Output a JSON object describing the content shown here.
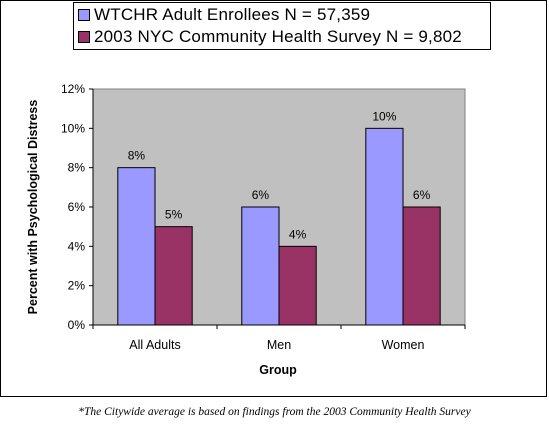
{
  "chart_data": {
    "type": "bar",
    "title": "",
    "xlabel": "Group",
    "ylabel": "Percent with Psychological Distress",
    "categories": [
      "All Adults",
      "Men",
      "Women"
    ],
    "series": [
      {
        "name": "WTCHR Adult Enrollees N = 57,359",
        "color": "#9999ff",
        "values": [
          8,
          6,
          10
        ],
        "labels": [
          "8%",
          "6%",
          "10%"
        ]
      },
      {
        "name": "2003 NYC Community Health Survey N = 9,802",
        "color": "#993366",
        "values": [
          5,
          4,
          6
        ],
        "labels": [
          "5%",
          "4%",
          "6%"
        ]
      }
    ],
    "ylim": [
      0,
      12
    ],
    "yticks": [
      0,
      2,
      4,
      6,
      8,
      10,
      12
    ],
    "ytick_labels": [
      "0%",
      "2%",
      "4%",
      "6%",
      "8%",
      "10%",
      "12%"
    ],
    "grid": false,
    "plot_background": "#c0c0c0",
    "legend_position": "top"
  },
  "footnote": "*The Citywide average is based on findings from the 2003 Community Health Survey"
}
